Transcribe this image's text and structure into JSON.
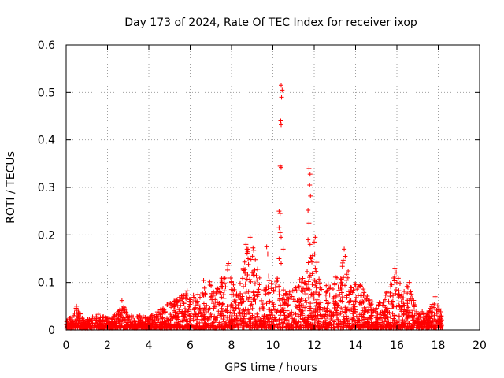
{
  "chart_data": {
    "type": "scatter",
    "title": "Day 173 of 2024, Rate Of TEC Index for receiver ixop",
    "xlabel": "GPS time / hours",
    "ylabel": "ROTI / TECUs",
    "xlim": [
      0,
      20
    ],
    "ylim": [
      0,
      0.6
    ],
    "grid": true,
    "marker": "+",
    "marker_color": "#ff0000",
    "x_ticks": [
      "0",
      "2",
      "4",
      "6",
      "8",
      "10",
      "12",
      "14",
      "16",
      "18",
      "20"
    ],
    "y_ticks": [
      "0",
      "0.1",
      "0.2",
      "0.3",
      "0.4",
      "0.5",
      "0.6"
    ],
    "envelope": [
      [
        0.0,
        0.02
      ],
      [
        0.3,
        0.03
      ],
      [
        0.5,
        0.05
      ],
      [
        0.8,
        0.025
      ],
      [
        1.0,
        0.022
      ],
      [
        1.5,
        0.035
      ],
      [
        2.0,
        0.025
      ],
      [
        2.5,
        0.04
      ],
      [
        2.7,
        0.062
      ],
      [
        3.0,
        0.03
      ],
      [
        3.5,
        0.03
      ],
      [
        4.0,
        0.03
      ],
      [
        4.5,
        0.04
      ],
      [
        5.0,
        0.06
      ],
      [
        5.5,
        0.07
      ],
      [
        5.9,
        0.09
      ],
      [
        6.3,
        0.07
      ],
      [
        6.8,
        0.12
      ],
      [
        7.2,
        0.08
      ],
      [
        7.8,
        0.14
      ],
      [
        8.2,
        0.08
      ],
      [
        8.7,
        0.16
      ],
      [
        9.0,
        0.19
      ],
      [
        9.5,
        0.08
      ],
      [
        9.8,
        0.12
      ],
      [
        10.0,
        0.1
      ],
      [
        10.3,
        0.12
      ],
      [
        10.6,
        0.08
      ],
      [
        11.0,
        0.09
      ],
      [
        11.5,
        0.12
      ],
      [
        11.8,
        0.16
      ],
      [
        12.0,
        0.2
      ],
      [
        12.3,
        0.1
      ],
      [
        12.8,
        0.1
      ],
      [
        13.2,
        0.12
      ],
      [
        13.5,
        0.17
      ],
      [
        13.8,
        0.1
      ],
      [
        14.2,
        0.1
      ],
      [
        14.6,
        0.07
      ],
      [
        15.0,
        0.05
      ],
      [
        15.5,
        0.08
      ],
      [
        15.9,
        0.13
      ],
      [
        16.3,
        0.08
      ],
      [
        16.6,
        0.1
      ],
      [
        17.0,
        0.04
      ],
      [
        17.5,
        0.04
      ],
      [
        17.9,
        0.07
      ],
      [
        18.2,
        0.03
      ]
    ],
    "outliers": [
      {
        "x": 10.4,
        "y": 0.515
      },
      {
        "x": 10.45,
        "y": 0.505
      },
      {
        "x": 10.42,
        "y": 0.49
      },
      {
        "x": 10.38,
        "y": 0.44
      },
      {
        "x": 10.4,
        "y": 0.432
      },
      {
        "x": 10.35,
        "y": 0.345
      },
      {
        "x": 10.4,
        "y": 0.342
      },
      {
        "x": 10.3,
        "y": 0.25
      },
      {
        "x": 10.35,
        "y": 0.245
      },
      {
        "x": 10.3,
        "y": 0.215
      },
      {
        "x": 10.35,
        "y": 0.205
      },
      {
        "x": 10.4,
        "y": 0.195
      },
      {
        "x": 10.5,
        "y": 0.17
      },
      {
        "x": 10.3,
        "y": 0.15
      },
      {
        "x": 10.4,
        "y": 0.14
      },
      {
        "x": 11.75,
        "y": 0.34
      },
      {
        "x": 11.8,
        "y": 0.328
      },
      {
        "x": 11.78,
        "y": 0.305
      },
      {
        "x": 11.82,
        "y": 0.282
      },
      {
        "x": 11.7,
        "y": 0.252
      },
      {
        "x": 11.75,
        "y": 0.225
      },
      {
        "x": 11.7,
        "y": 0.19
      },
      {
        "x": 11.8,
        "y": 0.18
      },
      {
        "x": 12.05,
        "y": 0.195
      },
      {
        "x": 12.0,
        "y": 0.185
      },
      {
        "x": 11.6,
        "y": 0.16
      },
      {
        "x": 11.85,
        "y": 0.15
      },
      {
        "x": 8.9,
        "y": 0.195
      },
      {
        "x": 8.7,
        "y": 0.18
      },
      {
        "x": 8.75,
        "y": 0.17
      },
      {
        "x": 8.8,
        "y": 0.15
      },
      {
        "x": 9.7,
        "y": 0.175
      },
      {
        "x": 9.75,
        "y": 0.16
      },
      {
        "x": 7.85,
        "y": 0.14
      },
      {
        "x": 13.45,
        "y": 0.17
      },
      {
        "x": 13.5,
        "y": 0.155
      },
      {
        "x": 15.9,
        "y": 0.13
      },
      {
        "x": 16.6,
        "y": 0.1
      },
      {
        "x": 2.7,
        "y": 0.062
      },
      {
        "x": 0.5,
        "y": 0.05
      },
      {
        "x": 17.85,
        "y": 0.07
      }
    ]
  }
}
